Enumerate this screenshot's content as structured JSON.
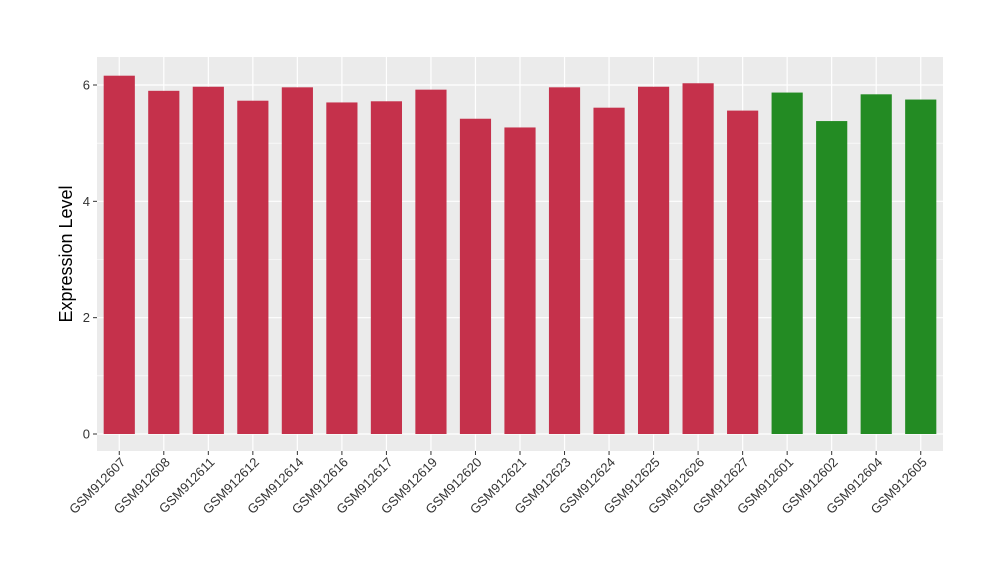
{
  "chart_data": {
    "type": "bar",
    "title": "",
    "xlabel": "",
    "ylabel": "Expression Level",
    "ylim": [
      0,
      6.4
    ],
    "yticks": [
      0,
      2,
      4,
      6
    ],
    "grid": true,
    "legend": "none",
    "colors": {
      "group_a": "#c5314b",
      "group_b": "#238b23",
      "panel_bg": "#ebebeb",
      "grid": "#ffffff"
    },
    "categories": [
      "GSM912607",
      "GSM912608",
      "GSM912611",
      "GSM912612",
      "GSM912614",
      "GSM912616",
      "GSM912617",
      "GSM912619",
      "GSM912620",
      "GSM912621",
      "GSM912623",
      "GSM912624",
      "GSM912625",
      "GSM912626",
      "GSM912627",
      "GSM912601",
      "GSM912602",
      "GSM912604",
      "GSM912605"
    ],
    "values": [
      6.16,
      5.9,
      5.97,
      5.73,
      5.96,
      5.7,
      5.72,
      5.92,
      5.42,
      5.27,
      5.96,
      5.61,
      5.97,
      6.03,
      5.56,
      5.87,
      5.38,
      5.84,
      5.75
    ],
    "groups": [
      "group_a",
      "group_a",
      "group_a",
      "group_a",
      "group_a",
      "group_a",
      "group_a",
      "group_a",
      "group_a",
      "group_a",
      "group_a",
      "group_a",
      "group_a",
      "group_a",
      "group_a",
      "group_b",
      "group_b",
      "group_b",
      "group_b"
    ]
  }
}
